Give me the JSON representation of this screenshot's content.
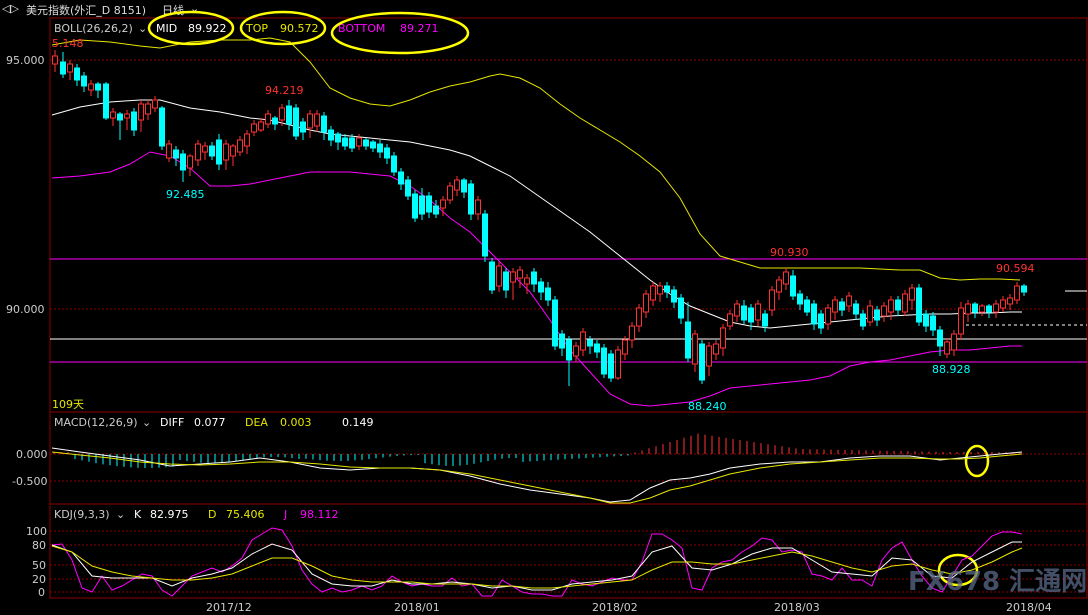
{
  "window": {
    "title": "美元指数(外汇_D 8151)",
    "period": "日线",
    "nav_arrows": "◁▷"
  },
  "boll": {
    "label": "BOLL(26,26,2)",
    "mid_label": "MID",
    "mid_value": "89.922",
    "top_label": "TOP",
    "top_value": "90.572",
    "bottom_label": "BOTTOM",
    "bottom_value": "89.271",
    "colors": {
      "mid": "#ffffff",
      "top": "#e6e600",
      "bottom": "#ff00ff"
    }
  },
  "price_axis": {
    "ticks": [
      "95.000",
      "90.000"
    ],
    "unit_days": "109天"
  },
  "annotations": {
    "hi1": "5.148",
    "hi2": "94.219",
    "lo1": "92.485",
    "hi3": "90.930",
    "lo2": "88.240",
    "hi4": "90.594",
    "lo3": "88.928"
  },
  "macd": {
    "label": "MACD(12,26,9)",
    "diff_label": "DIFF",
    "diff_value": "0.077",
    "dea_label": "DEA",
    "dea_value": "0.003",
    "macd_value": "0.149",
    "ticks": [
      "0.000",
      "-0.500"
    ]
  },
  "kdj": {
    "label": "KDJ(9,3,3)",
    "k_label": "K",
    "k_value": "82.975",
    "d_label": "D",
    "d_value": "75.406",
    "j_label": "J",
    "j_value": "98.112",
    "ticks": [
      "100",
      "80",
      "50",
      "20",
      "0"
    ]
  },
  "x_axis": {
    "labels": [
      "2017/12",
      "2018/01",
      "2018/02",
      "2018/03",
      "2018/04"
    ]
  },
  "watermark": "FX678 汇通网",
  "colors": {
    "up": "#ff3232",
    "down": "#00ffff",
    "grid": "#8b0000",
    "highlight": "#ffff00"
  }
}
